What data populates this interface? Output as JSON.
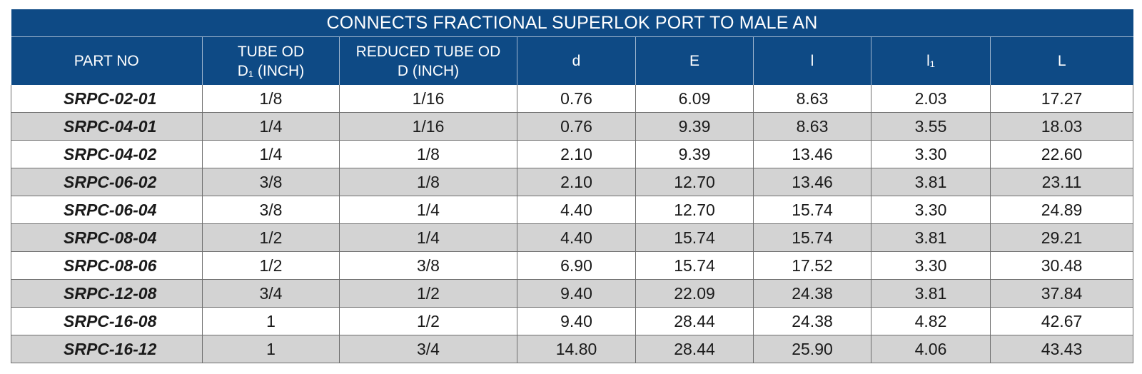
{
  "table": {
    "title": "CONNECTS FRACTIONAL SUPERLOK PORT TO MALE AN",
    "headers": [
      {
        "line1": "PART NO",
        "line2": ""
      },
      {
        "line1": "TUBE OD",
        "line2": "D₁ (INCH)"
      },
      {
        "line1": "REDUCED TUBE OD",
        "line2": "D (INCH)"
      },
      {
        "line1": "d",
        "line2": ""
      },
      {
        "line1": "E",
        "line2": ""
      },
      {
        "line1": "l",
        "line2": ""
      },
      {
        "line1": "l₁",
        "line2": ""
      },
      {
        "line1": "L",
        "line2": ""
      }
    ],
    "rows": [
      [
        "SRPC-02-01",
        "1/8",
        "1/16",
        "0.76",
        "6.09",
        "8.63",
        "2.03",
        "17.27"
      ],
      [
        "SRPC-04-01",
        "1/4",
        "1/16",
        "0.76",
        "9.39",
        "8.63",
        "3.55",
        "18.03"
      ],
      [
        "SRPC-04-02",
        "1/4",
        "1/8",
        "2.10",
        "9.39",
        "13.46",
        "3.30",
        "22.60"
      ],
      [
        "SRPC-06-02",
        "3/8",
        "1/8",
        "2.10",
        "12.70",
        "13.46",
        "3.81",
        "23.11"
      ],
      [
        "SRPC-06-04",
        "3/8",
        "1/4",
        "4.40",
        "12.70",
        "15.74",
        "3.30",
        "24.89"
      ],
      [
        "SRPC-08-04",
        "1/2",
        "1/4",
        "4.40",
        "15.74",
        "15.74",
        "3.81",
        "29.21"
      ],
      [
        "SRPC-08-06",
        "1/2",
        "3/8",
        "6.90",
        "15.74",
        "17.52",
        "3.30",
        "30.48"
      ],
      [
        "SRPC-12-08",
        "3/4",
        "1/2",
        "9.40",
        "22.09",
        "24.38",
        "3.81",
        "37.84"
      ],
      [
        "SRPC-16-08",
        "1",
        "1/2",
        "9.40",
        "28.44",
        "24.38",
        "4.82",
        "42.67"
      ],
      [
        "SRPC-16-12",
        "1",
        "3/4",
        "14.80",
        "28.44",
        "25.90",
        "4.06",
        "43.43"
      ]
    ]
  },
  "colors": {
    "header_bg": "#0e4a85",
    "header_text": "#ffffff",
    "row_alt_bg": "#d3d3d3",
    "row_bg": "#ffffff"
  }
}
